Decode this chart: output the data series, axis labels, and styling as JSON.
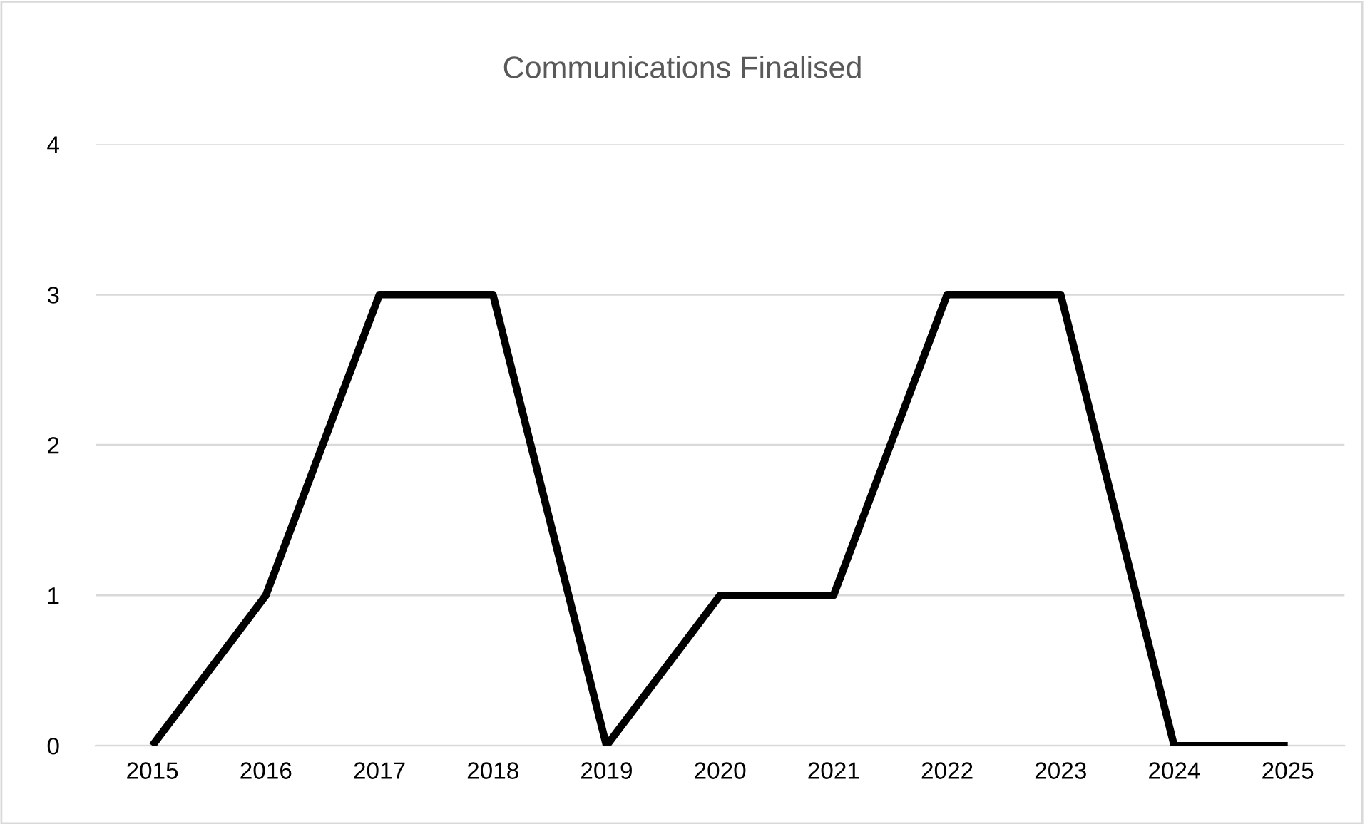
{
  "chart_data": {
    "type": "line",
    "title": "Communications Finalised",
    "categories": [
      "2015",
      "2016",
      "2017",
      "2018",
      "2019",
      "2020",
      "2021",
      "2022",
      "2023",
      "2024",
      "2025"
    ],
    "series": [
      {
        "color": "#000000",
        "values": [
          0,
          1,
          3,
          3,
          0,
          1,
          1,
          3,
          3,
          0,
          0
        ]
      }
    ],
    "ylim": [
      0,
      4
    ],
    "yticks": [
      0,
      1,
      2,
      3,
      4
    ],
    "grid": "y"
  }
}
